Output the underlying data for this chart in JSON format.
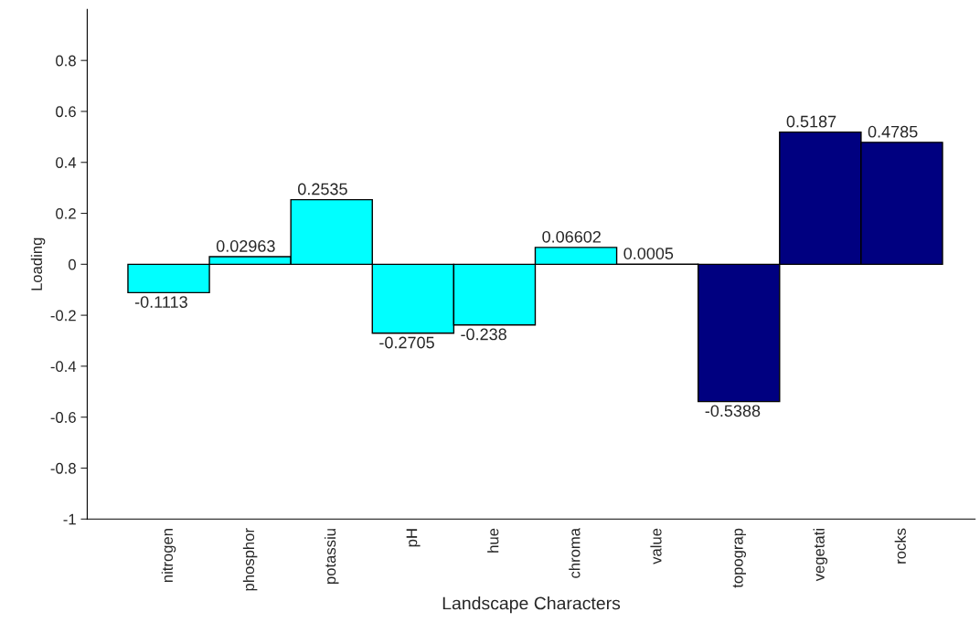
{
  "chart_data": {
    "type": "bar",
    "xlabel": "Landscape Characters",
    "ylabel": "Loading",
    "categories": [
      "nitrogen",
      "phosphor",
      "potassiu",
      "pH",
      "hue",
      "chroma",
      "value",
      "topograp",
      "vegetati",
      "rocks"
    ],
    "values": [
      -0.1113,
      0.02963,
      0.2535,
      -0.2705,
      -0.238,
      0.06602,
      0.0005,
      -0.5388,
      0.5187,
      0.4785
    ],
    "colors": [
      "#00ffff",
      "#00ffff",
      "#00ffff",
      "#00ffff",
      "#00ffff",
      "#00ffff",
      "#00ffff",
      "#000080",
      "#000080",
      "#000080"
    ],
    "ylim": [
      -1,
      1
    ],
    "yticks": [
      -1,
      -0.8,
      -0.6,
      -0.4,
      -0.2,
      0,
      0.2,
      0.4,
      0.6,
      0.8
    ],
    "data_labels": true,
    "grid": false,
    "legend": false
  }
}
